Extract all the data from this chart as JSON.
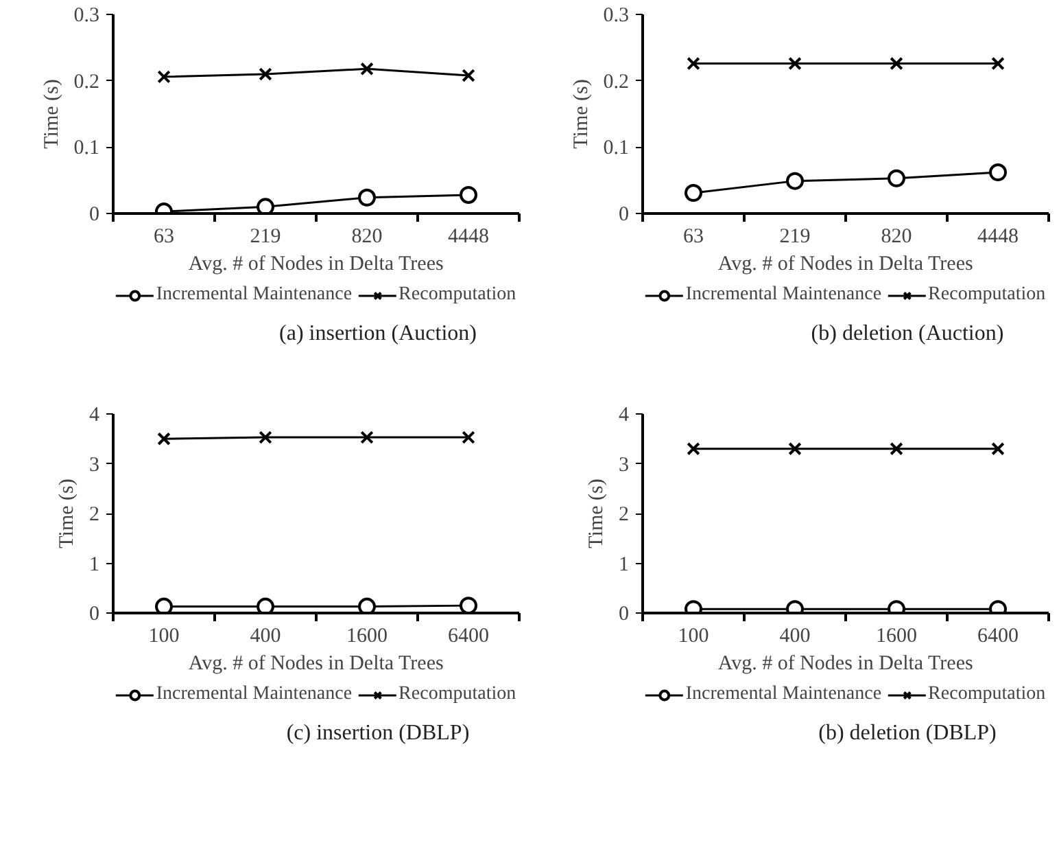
{
  "chart_data": [
    {
      "type": "line",
      "xlabel": "Avg. # of Nodes in Delta Trees",
      "ylabel": "Time (s)",
      "categories": [
        "63",
        "219",
        "820",
        "4448"
      ],
      "ylim": [
        0,
        0.3
      ],
      "yticks": [
        0,
        0.1,
        0.2,
        0.3
      ],
      "grid": false,
      "legend": "bottom",
      "annotations": [
        "(a) insertion (Auction)"
      ],
      "series": [
        {
          "name": "Incremental Maintenance",
          "color": "#000000",
          "marker": "circle",
          "values": [
            0.003,
            0.01,
            0.024,
            0.028
          ]
        },
        {
          "name": "Recomputation",
          "color": "#000000",
          "marker": "cross",
          "values": [
            0.206,
            0.21,
            0.218,
            0.208
          ]
        }
      ]
    },
    {
      "type": "line",
      "xlabel": "Avg. # of Nodes in Delta Trees",
      "ylabel": "Time (s)",
      "categories": [
        "63",
        "219",
        "820",
        "4448"
      ],
      "ylim": [
        0,
        0.3
      ],
      "yticks": [
        0,
        0.1,
        0.2,
        0.3
      ],
      "grid": false,
      "legend": "bottom",
      "annotations": [
        "(b) deletion (Auction)"
      ],
      "series": [
        {
          "name": "Incremental Maintenance",
          "color": "#000000",
          "marker": "circle",
          "values": [
            0.031,
            0.049,
            0.053,
            0.062
          ]
        },
        {
          "name": "Recomputation",
          "color": "#000000",
          "marker": "cross",
          "values": [
            0.226,
            0.226,
            0.226,
            0.226
          ]
        }
      ]
    },
    {
      "type": "line",
      "xlabel": "Avg. # of Nodes in Delta Trees",
      "ylabel": "Time (s)",
      "categories": [
        "100",
        "400",
        "1600",
        "6400"
      ],
      "ylim": [
        0,
        4
      ],
      "yticks": [
        0,
        1,
        2,
        3,
        4
      ],
      "grid": false,
      "legend": "bottom",
      "annotations": [
        "(c) insertion (DBLP)"
      ],
      "series": [
        {
          "name": "Incremental Maintenance",
          "color": "#000000",
          "marker": "circle",
          "values": [
            0.13,
            0.13,
            0.13,
            0.15
          ]
        },
        {
          "name": "Recomputation",
          "color": "#000000",
          "marker": "cross",
          "values": [
            3.5,
            3.53,
            3.53,
            3.53
          ]
        }
      ]
    },
    {
      "type": "line",
      "xlabel": "Avg. # of Nodes in Delta Trees",
      "ylabel": "Time (s)",
      "categories": [
        "100",
        "400",
        "1600",
        "6400"
      ],
      "ylim": [
        0,
        4
      ],
      "yticks": [
        0,
        1,
        2,
        3,
        4
      ],
      "grid": false,
      "legend": "bottom",
      "annotations": [
        "(b) deletion (DBLP)"
      ],
      "series": [
        {
          "name": "Incremental Maintenance",
          "color": "#000000",
          "marker": "circle",
          "values": [
            0.08,
            0.08,
            0.08,
            0.08
          ]
        },
        {
          "name": "Recomputation",
          "color": "#000000",
          "marker": "cross",
          "values": [
            3.3,
            3.3,
            3.3,
            3.3
          ]
        }
      ]
    }
  ]
}
